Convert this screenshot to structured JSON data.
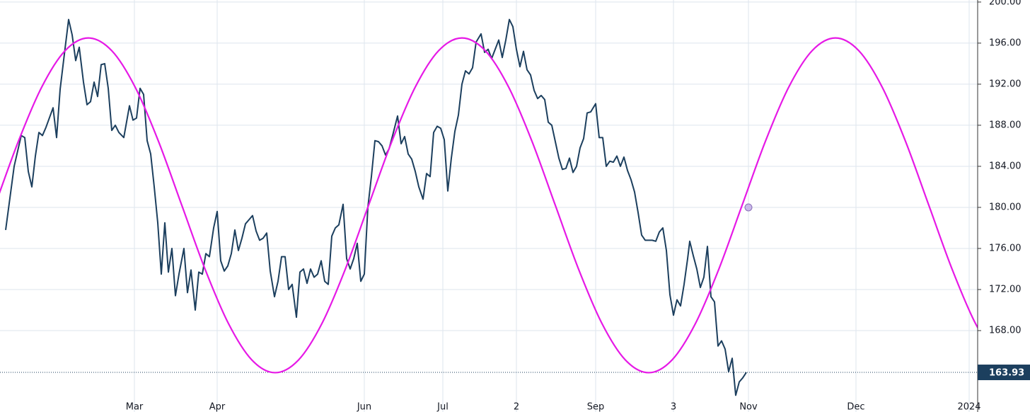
{
  "chart_data": {
    "type": "line",
    "xlim": [
      0,
      276.4
    ],
    "ylim": [
      160.07,
      200.2
    ],
    "xticks": [
      {
        "value": 38,
        "label": "Mar"
      },
      {
        "value": 61.4,
        "label": "Apr"
      },
      {
        "value": 103,
        "label": "Jun"
      },
      {
        "value": 125.2,
        "label": "Jul"
      },
      {
        "value": 146,
        "label": "2"
      },
      {
        "value": 168.4,
        "label": "Sep"
      },
      {
        "value": 190.4,
        "label": "3"
      },
      {
        "value": 211.6,
        "label": "Nov"
      },
      {
        "value": 242,
        "label": "Dec"
      },
      {
        "value": 274,
        "label": "2024"
      }
    ],
    "yticks": [
      {
        "value": 168,
        "label": "168.00"
      },
      {
        "value": 172,
        "label": "172.00"
      },
      {
        "value": 176,
        "label": "176.00"
      },
      {
        "value": 180,
        "label": "180.00"
      },
      {
        "value": 184,
        "label": "184.00"
      },
      {
        "value": 188,
        "label": "188.00"
      },
      {
        "value": 192,
        "label": "192.00"
      },
      {
        "value": 196,
        "label": "196.00"
      },
      {
        "value": 200,
        "label": "200.00"
      }
    ],
    "grid": true,
    "last_value": 163.93,
    "marker": {
      "x": 211.6,
      "y": 180.0,
      "color": "#c9b8e8"
    },
    "series": [
      {
        "color": "#1c3f5e",
        "x": [
          1.6,
          4,
          6,
          7,
          8,
          9,
          10,
          11,
          12,
          13,
          15,
          16,
          17,
          18.4,
          19.4,
          20.4,
          21.4,
          22.4,
          23.6,
          24.6,
          25.6,
          26.6,
          27.6,
          28.6,
          29.6,
          30.6,
          31.6,
          32.6,
          33.6,
          35,
          36.6,
          37.6,
          38.6,
          39.6,
          40.6,
          41.6,
          42.6,
          43.6,
          44.6,
          45.6,
          46.6,
          47.6,
          48.6,
          49.6,
          50.6,
          52,
          53,
          54,
          55.2,
          56.2,
          57.2,
          58.2,
          59.2,
          60.4,
          61.4,
          62.4,
          63.4,
          64.4,
          65.4,
          66.4,
          67.4,
          68.4,
          69.4,
          70.4,
          71.4,
          72.4,
          73.4,
          74.4,
          75.4,
          76.4,
          77.6,
          78.6,
          79.6,
          80.6,
          81.6,
          82.6,
          83.8,
          84.8,
          85.8,
          86.8,
          87.8,
          88.8,
          89.8,
          90.8,
          91.8,
          92.8,
          93.8,
          94.8,
          95.8,
          97,
          98,
          99,
          100,
          101,
          102,
          103,
          104,
          105,
          106,
          107,
          108,
          109,
          110,
          111,
          112.4,
          113.4,
          114.4,
          115.4,
          116.4,
          117.4,
          118.4,
          119.6,
          120.6,
          121.6,
          122.6,
          123.6,
          124.6,
          125.6,
          126.6,
          127.6,
          128.6,
          129.6,
          130.6,
          131.6,
          132.6,
          133.6,
          134.6,
          136,
          137,
          138,
          139,
          140,
          141,
          142,
          143,
          144,
          145,
          146,
          147,
          148,
          149,
          150,
          151,
          152,
          153,
          154,
          155,
          156,
          157,
          158,
          159,
          160,
          161,
          162,
          163,
          164,
          165,
          166,
          167,
          168.4,
          169.4,
          170.4,
          171.4,
          172.4,
          173.4,
          174.4,
          175.4,
          176.4,
          177.4,
          178.4,
          179.4,
          180.4,
          181.4,
          182.4,
          183.4,
          184.4,
          185.4,
          186.4,
          187.4,
          188.4,
          189.4,
          190.4,
          191.4,
          192.4,
          193.4,
          194.4,
          195,
          196,
          197,
          198,
          199,
          200,
          201,
          202,
          203,
          204,
          205,
          206,
          207,
          208,
          209,
          210,
          211
        ],
        "values": [
          177.8,
          184,
          187,
          186.8,
          183.5,
          182,
          185,
          187.3,
          187,
          187.8,
          189.7,
          186.8,
          191.5,
          195.5,
          198.3,
          196.8,
          194.3,
          195.6,
          192.2,
          190,
          190.3,
          192.2,
          190.8,
          193.9,
          194,
          191.6,
          187.5,
          188,
          187.3,
          186.8,
          189.9,
          188.5,
          188.7,
          191.6,
          191,
          186.5,
          185.2,
          182,
          178.5,
          173.5,
          178.5,
          173.7,
          176,
          171.4,
          173.5,
          176,
          171.7,
          173.9,
          170,
          173.7,
          173.5,
          175.5,
          175.2,
          178,
          179.6,
          174.8,
          173.8,
          174.3,
          175.5,
          177.8,
          175.8,
          177,
          178.4,
          178.8,
          179.2,
          177.7,
          176.8,
          177,
          177.5,
          173.8,
          171.3,
          172.8,
          175.2,
          175.2,
          172,
          172.5,
          169.3,
          173.7,
          174,
          172.6,
          174,
          173.2,
          173.5,
          174.8,
          172.8,
          172.5,
          177.2,
          178,
          178.3,
          180.3,
          175,
          174,
          175,
          176.5,
          172.8,
          173.5,
          180,
          183,
          186.5,
          186.4,
          186,
          185.1,
          185.7,
          187,
          188.9,
          186.2,
          186.9,
          185.2,
          184.7,
          183.5,
          182,
          180.8,
          183.3,
          183,
          187.3,
          187.9,
          187.7,
          186.6,
          181.6,
          184.8,
          187.4,
          189,
          192,
          193.3,
          193,
          193.6,
          196.1,
          196.9,
          195.1,
          195.4,
          194.5,
          195.4,
          196.3,
          194.6,
          196.3,
          198.3,
          197.6,
          195.4,
          193.7,
          195.2,
          193.4,
          192.9,
          191.4,
          190.6,
          190.9,
          190.5,
          188.3,
          188,
          186.4,
          184.8,
          183.7,
          183.8,
          184.8,
          183.4,
          184,
          185.8,
          186.7,
          189.2,
          189.3,
          190.1,
          186.8,
          186.8,
          184,
          184.5,
          184.4,
          185,
          184,
          184.9,
          183.6,
          182.7,
          181.5,
          179.5,
          177.3,
          176.8,
          176.8,
          176.8,
          176.7,
          177.6,
          178,
          175.8,
          171.5,
          169.5,
          171,
          170.4,
          172.5,
          175,
          176.7,
          175.3,
          174,
          172.2,
          173.2,
          176.2,
          171.3,
          170.8,
          166.5,
          167,
          166.2,
          164,
          165.3,
          161.7,
          163,
          163.4,
          163.93
        ]
      },
      {
        "color": "#e619e6",
        "smooth": true,
        "x": [
          -1.4,
          5.2,
          11.8,
          18.4,
          25,
          31.6,
          38.2,
          44.8,
          51.4,
          58,
          64.6,
          71.2,
          77.8,
          84.4,
          91,
          97.6,
          104.2,
          110.8,
          117.4,
          124,
          130.6,
          137.2,
          143.8,
          150.4,
          157,
          163.6,
          170.2,
          176.8,
          183.4,
          190,
          196.6,
          203.2,
          209.8,
          216.4,
          223,
          229.6,
          236.2,
          242.8,
          249.4,
          256,
          262.6,
          269.2,
          275.8,
          282.4
        ],
        "values": [
          180.2,
          186.44,
          191.72,
          195.26,
          196.5,
          195.26,
          191.72,
          186.44,
          180.2,
          173.96,
          168.68,
          165.14,
          163.9,
          165.14,
          168.68,
          173.96,
          180.2,
          186.44,
          191.72,
          195.26,
          196.5,
          195.26,
          191.72,
          186.44,
          180.2,
          173.96,
          168.68,
          165.14,
          163.9,
          165.14,
          168.68,
          173.96,
          180.2,
          186.44,
          191.72,
          195.26,
          196.5,
          195.26,
          191.72,
          186.44,
          180.2,
          173.96,
          168.68,
          165.14
        ]
      }
    ]
  }
}
